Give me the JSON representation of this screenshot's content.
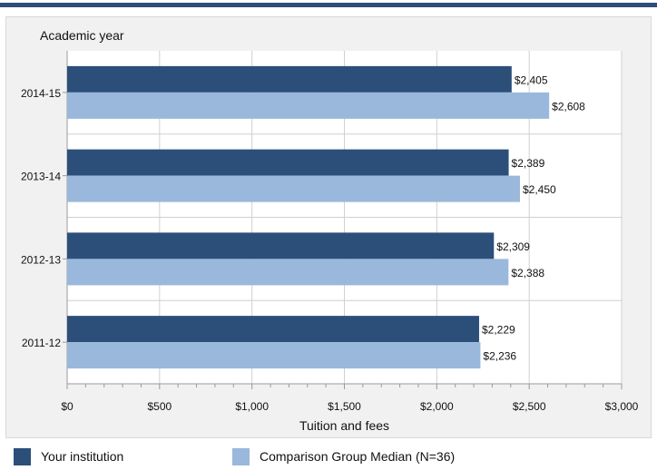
{
  "chart_data": {
    "type": "bar",
    "orientation": "horizontal",
    "title": "",
    "ylabel": "Academic year",
    "xlabel": "Tuition and fees",
    "categories": [
      "2014-15",
      "2013-14",
      "2012-13",
      "2011-12"
    ],
    "series": [
      {
        "name": "Your institution",
        "color": "#2c4f7a",
        "values": [
          2405,
          2389,
          2309,
          2229
        ],
        "labels": [
          "$2,405",
          "$2,389",
          "$2,309",
          "$2,229"
        ]
      },
      {
        "name": "Comparison Group Median (N=36)",
        "color": "#9ab8dc",
        "values": [
          2608,
          2450,
          2388,
          2236
        ],
        "labels": [
          "$2,608",
          "$2,450",
          "$2,388",
          "$2,236"
        ]
      }
    ],
    "xlim": [
      0,
      3000
    ],
    "xticks": [
      0,
      500,
      1000,
      1500,
      2000,
      2500,
      3000
    ],
    "xtick_labels": [
      "$0",
      "$500",
      "$1,000",
      "$1,500",
      "$2,000",
      "$2,500",
      "$3,000"
    ],
    "grid": true,
    "legend": "bottom-left"
  },
  "legend": {
    "items": [
      {
        "label": "Your institution",
        "color": "#2c4f7a"
      },
      {
        "label": "Comparison Group Median (N=36)",
        "color": "#9ab8dc"
      }
    ]
  }
}
